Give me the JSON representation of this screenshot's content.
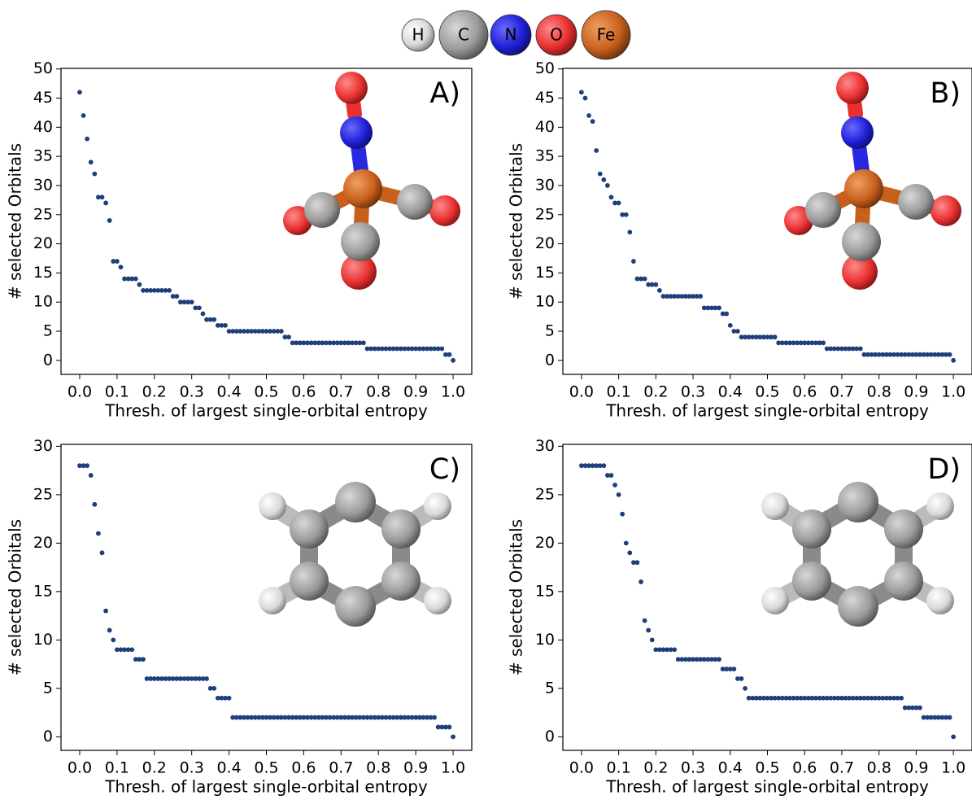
{
  "legend": [
    {
      "label": "H",
      "color": "#e8e8e8"
    },
    {
      "label": "C",
      "color": "#9a9a9a"
    },
    {
      "label": "N",
      "color": "#2a2ae6"
    },
    {
      "label": "O",
      "color": "#e83a3a"
    },
    {
      "label": "Fe",
      "color": "#d2691e"
    }
  ],
  "chart_data": [
    {
      "type": "scatter",
      "label": "A)",
      "xlabel": "Thresh. of largest single-orbital entropy",
      "ylabel": "# selected Orbitals",
      "color": "#1f3f7a",
      "xlim": [
        -0.05,
        1.05
      ],
      "ylim": [
        -2.4,
        50.1
      ],
      "xticks": [
        {
          "value": 0,
          "label": "0.0"
        },
        0.1,
        0.2,
        0.3,
        0.4,
        0.5,
        0.6,
        0.7,
        0.8,
        0.9,
        {
          "value": 1,
          "label": "1.0"
        }
      ],
      "yticks": [
        0,
        5,
        10,
        15,
        20,
        25,
        30,
        35,
        40,
        45,
        50
      ],
      "x": [
        0,
        0.01,
        0.02,
        0.03,
        0.04,
        0.05,
        0.06,
        0.07,
        0.08,
        0.09,
        0.1,
        0.11,
        0.12,
        0.13,
        0.14,
        0.15,
        0.16,
        0.17,
        0.18,
        0.19,
        0.2,
        0.21,
        0.22,
        0.23,
        0.24,
        0.25,
        0.26,
        0.27,
        0.28,
        0.29,
        0.3,
        0.31,
        0.32,
        0.33,
        0.34,
        0.35,
        0.36,
        0.37,
        0.38,
        0.39,
        0.4,
        0.41,
        0.42,
        0.43,
        0.44,
        0.45,
        0.46,
        0.47,
        0.48,
        0.49,
        0.5,
        0.51,
        0.52,
        0.53,
        0.54,
        0.55,
        0.56,
        0.57,
        0.58,
        0.59,
        0.6,
        0.61,
        0.62,
        0.63,
        0.64,
        0.65,
        0.66,
        0.67,
        0.68,
        0.69,
        0.7,
        0.71,
        0.72,
        0.73,
        0.74,
        0.75,
        0.76,
        0.77,
        0.78,
        0.79,
        0.8,
        0.81,
        0.82,
        0.83,
        0.84,
        0.85,
        0.86,
        0.87,
        0.88,
        0.89,
        0.9,
        0.91,
        0.92,
        0.93,
        0.94,
        0.95,
        0.96,
        0.97,
        0.98,
        0.99,
        1
      ],
      "values": [
        46,
        42,
        38,
        34,
        32,
        28,
        28,
        27,
        24,
        17,
        17,
        16,
        14,
        14,
        14,
        14,
        13,
        12,
        12,
        12,
        12,
        12,
        12,
        12,
        12,
        11,
        11,
        10,
        10,
        10,
        10,
        9,
        9,
        8,
        7,
        7,
        7,
        6,
        6,
        6,
        5,
        5,
        5,
        5,
        5,
        5,
        5,
        5,
        5,
        5,
        5,
        5,
        5,
        5,
        5,
        4,
        4,
        3,
        3,
        3,
        3,
        3,
        3,
        3,
        3,
        3,
        3,
        3,
        3,
        3,
        3,
        3,
        3,
        3,
        3,
        3,
        3,
        2,
        2,
        2,
        2,
        2,
        2,
        2,
        2,
        2,
        2,
        2,
        2,
        2,
        2,
        2,
        2,
        2,
        2,
        2,
        2,
        2,
        1,
        1,
        0
      ]
    },
    {
      "type": "scatter",
      "label": "B)",
      "xlabel": "Thresh. of largest single-orbital entropy",
      "ylabel": "# selected Orbitals",
      "color": "#1f3f7a",
      "xlim": [
        -0.05,
        1.05
      ],
      "ylim": [
        -2.4,
        50.1
      ],
      "xticks": [
        {
          "value": 0,
          "label": "0.0"
        },
        0.1,
        0.2,
        0.3,
        0.4,
        0.5,
        0.6,
        0.7,
        0.8,
        0.9,
        {
          "value": 1,
          "label": "1.0"
        }
      ],
      "yticks": [
        0,
        5,
        10,
        15,
        20,
        25,
        30,
        35,
        40,
        45,
        50
      ],
      "x": [
        0,
        0.01,
        0.02,
        0.03,
        0.04,
        0.05,
        0.06,
        0.07,
        0.08,
        0.09,
        0.1,
        0.11,
        0.12,
        0.13,
        0.14,
        0.15,
        0.16,
        0.17,
        0.18,
        0.19,
        0.2,
        0.21,
        0.22,
        0.23,
        0.24,
        0.25,
        0.26,
        0.27,
        0.28,
        0.29,
        0.3,
        0.31,
        0.32,
        0.33,
        0.34,
        0.35,
        0.36,
        0.37,
        0.38,
        0.39,
        0.4,
        0.41,
        0.42,
        0.43,
        0.44,
        0.45,
        0.46,
        0.47,
        0.48,
        0.49,
        0.5,
        0.51,
        0.52,
        0.53,
        0.54,
        0.55,
        0.56,
        0.57,
        0.58,
        0.59,
        0.6,
        0.61,
        0.62,
        0.63,
        0.64,
        0.65,
        0.66,
        0.67,
        0.68,
        0.69,
        0.7,
        0.71,
        0.72,
        0.73,
        0.74,
        0.75,
        0.76,
        0.77,
        0.78,
        0.79,
        0.8,
        0.81,
        0.82,
        0.83,
        0.84,
        0.85,
        0.86,
        0.87,
        0.88,
        0.89,
        0.9,
        0.91,
        0.92,
        0.93,
        0.94,
        0.95,
        0.96,
        0.97,
        0.98,
        0.99,
        1
      ],
      "values": [
        46,
        45,
        42,
        41,
        36,
        32,
        31,
        30,
        28,
        27,
        27,
        25,
        25,
        22,
        17,
        14,
        14,
        14,
        13,
        13,
        13,
        12,
        11,
        11,
        11,
        11,
        11,
        11,
        11,
        11,
        11,
        11,
        11,
        9,
        9,
        9,
        9,
        9,
        8,
        8,
        6,
        5,
        5,
        4,
        4,
        4,
        4,
        4,
        4,
        4,
        4,
        4,
        4,
        3,
        3,
        3,
        3,
        3,
        3,
        3,
        3,
        3,
        3,
        3,
        3,
        3,
        2,
        2,
        2,
        2,
        2,
        2,
        2,
        2,
        2,
        2,
        1,
        1,
        1,
        1,
        1,
        1,
        1,
        1,
        1,
        1,
        1,
        1,
        1,
        1,
        1,
        1,
        1,
        1,
        1,
        1,
        1,
        1,
        1,
        1,
        0
      ]
    },
    {
      "type": "scatter",
      "label": "C)",
      "xlabel": "Thresh. of largest single-orbital entropy",
      "ylabel": "# selected Orbitals",
      "color": "#1f3f7a",
      "xlim": [
        -0.05,
        1.05
      ],
      "ylim": [
        -1.4,
        30.2
      ],
      "xticks": [
        {
          "value": 0,
          "label": "0.0"
        },
        0.1,
        0.2,
        0.3,
        0.4,
        0.5,
        0.6,
        0.7,
        0.8,
        0.9,
        {
          "value": 1,
          "label": "1.0"
        }
      ],
      "yticks": [
        0,
        5,
        10,
        15,
        20,
        25,
        30
      ],
      "x": [
        0,
        0.01,
        0.02,
        0.03,
        0.04,
        0.05,
        0.06,
        0.07,
        0.08,
        0.09,
        0.1,
        0.11,
        0.12,
        0.13,
        0.14,
        0.15,
        0.16,
        0.17,
        0.18,
        0.19,
        0.2,
        0.21,
        0.22,
        0.23,
        0.24,
        0.25,
        0.26,
        0.27,
        0.28,
        0.29,
        0.3,
        0.31,
        0.32,
        0.33,
        0.34,
        0.35,
        0.36,
        0.37,
        0.38,
        0.39,
        0.4,
        0.41,
        0.42,
        0.43,
        0.44,
        0.45,
        0.46,
        0.47,
        0.48,
        0.49,
        0.5,
        0.51,
        0.52,
        0.53,
        0.54,
        0.55,
        0.56,
        0.57,
        0.58,
        0.59,
        0.6,
        0.61,
        0.62,
        0.63,
        0.64,
        0.65,
        0.66,
        0.67,
        0.68,
        0.69,
        0.7,
        0.71,
        0.72,
        0.73,
        0.74,
        0.75,
        0.76,
        0.77,
        0.78,
        0.79,
        0.8,
        0.81,
        0.82,
        0.83,
        0.84,
        0.85,
        0.86,
        0.87,
        0.88,
        0.89,
        0.9,
        0.91,
        0.92,
        0.93,
        0.94,
        0.95,
        0.96,
        0.97,
        0.98,
        0.99,
        1
      ],
      "values": [
        28,
        28,
        28,
        27,
        24,
        21,
        19,
        13,
        11,
        10,
        9,
        9,
        9,
        9,
        9,
        8,
        8,
        8,
        6,
        6,
        6,
        6,
        6,
        6,
        6,
        6,
        6,
        6,
        6,
        6,
        6,
        6,
        6,
        6,
        6,
        5,
        5,
        4,
        4,
        4,
        4,
        2,
        2,
        2,
        2,
        2,
        2,
        2,
        2,
        2,
        2,
        2,
        2,
        2,
        2,
        2,
        2,
        2,
        2,
        2,
        2,
        2,
        2,
        2,
        2,
        2,
        2,
        2,
        2,
        2,
        2,
        2,
        2,
        2,
        2,
        2,
        2,
        2,
        2,
        2,
        2,
        2,
        2,
        2,
        2,
        2,
        2,
        2,
        2,
        2,
        2,
        2,
        2,
        2,
        2,
        2,
        1,
        1,
        1,
        1,
        0
      ]
    },
    {
      "type": "scatter",
      "label": "D)",
      "xlabel": "Thresh. of largest single-orbital entropy",
      "ylabel": "# selected Orbitals",
      "color": "#1f3f7a",
      "xlim": [
        -0.05,
        1.05
      ],
      "ylim": [
        -1.4,
        30.2
      ],
      "xticks": [
        {
          "value": 0,
          "label": "0.0"
        },
        0.1,
        0.2,
        0.3,
        0.4,
        0.5,
        0.6,
        0.7,
        0.8,
        0.9,
        {
          "value": 1,
          "label": "1.0"
        }
      ],
      "yticks": [
        0,
        5,
        10,
        15,
        20,
        25,
        30
      ],
      "x": [
        0,
        0.01,
        0.02,
        0.03,
        0.04,
        0.05,
        0.06,
        0.07,
        0.08,
        0.09,
        0.1,
        0.11,
        0.12,
        0.13,
        0.14,
        0.15,
        0.16,
        0.17,
        0.18,
        0.19,
        0.2,
        0.21,
        0.22,
        0.23,
        0.24,
        0.25,
        0.26,
        0.27,
        0.28,
        0.29,
        0.3,
        0.31,
        0.32,
        0.33,
        0.34,
        0.35,
        0.36,
        0.37,
        0.38,
        0.39,
        0.4,
        0.41,
        0.42,
        0.43,
        0.44,
        0.45,
        0.46,
        0.47,
        0.48,
        0.49,
        0.5,
        0.51,
        0.52,
        0.53,
        0.54,
        0.55,
        0.56,
        0.57,
        0.58,
        0.59,
        0.6,
        0.61,
        0.62,
        0.63,
        0.64,
        0.65,
        0.66,
        0.67,
        0.68,
        0.69,
        0.7,
        0.71,
        0.72,
        0.73,
        0.74,
        0.75,
        0.76,
        0.77,
        0.78,
        0.79,
        0.8,
        0.81,
        0.82,
        0.83,
        0.84,
        0.85,
        0.86,
        0.87,
        0.88,
        0.89,
        0.9,
        0.91,
        0.92,
        0.93,
        0.94,
        0.95,
        0.96,
        0.97,
        0.98,
        0.99,
        1
      ],
      "values": [
        28,
        28,
        28,
        28,
        28,
        28,
        28,
        27,
        27,
        26,
        25,
        23,
        20,
        19,
        18,
        18,
        16,
        12,
        11,
        10,
        9,
        9,
        9,
        9,
        9,
        9,
        8,
        8,
        8,
        8,
        8,
        8,
        8,
        8,
        8,
        8,
        8,
        8,
        7,
        7,
        7,
        7,
        6,
        6,
        5,
        4,
        4,
        4,
        4,
        4,
        4,
        4,
        4,
        4,
        4,
        4,
        4,
        4,
        4,
        4,
        4,
        4,
        4,
        4,
        4,
        4,
        4,
        4,
        4,
        4,
        4,
        4,
        4,
        4,
        4,
        4,
        4,
        4,
        4,
        4,
        4,
        4,
        4,
        4,
        4,
        4,
        4,
        3,
        3,
        3,
        3,
        3,
        2,
        2,
        2,
        2,
        2,
        2,
        2,
        2,
        0
      ]
    }
  ]
}
